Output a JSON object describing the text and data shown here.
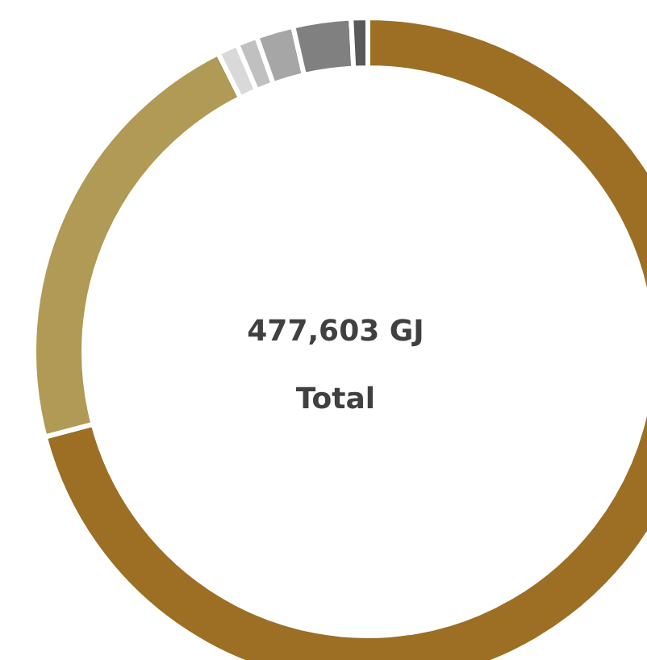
{
  "chart_data": {
    "type": "donut",
    "categories": [
      null,
      null,
      null,
      null,
      null,
      null,
      null
    ],
    "values": [
      70.9,
      21.7,
      1.0,
      1.0,
      1.8,
      2.8,
      0.8
    ],
    "colors": [
      "#9c6f24",
      "#b09a55",
      "#d9d9d9",
      "#c0c0c0",
      "#a6a6a6",
      "#808080",
      "#595959"
    ],
    "annotations": [
      "477,603 GJ",
      "Total"
    ]
  }
}
